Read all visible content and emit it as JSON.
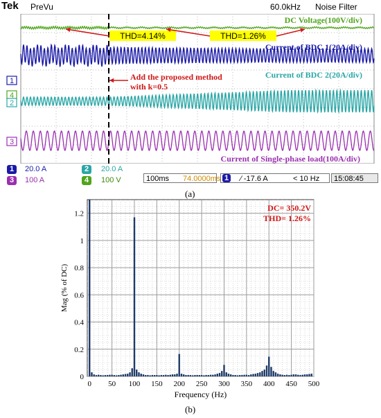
{
  "scope": {
    "brand": "Tek",
    "mode": "PreVu",
    "sample_rate": "60.0kHz",
    "filter": "Noise Filter",
    "timebase": "100ms/div",
    "ch_markers": [
      "1",
      "4",
      "2",
      "3"
    ],
    "annotations": {
      "thd_before": "THD=4.14%",
      "thd_after": "THD=1.26%",
      "dc_voltage": "DC Voltage(100V/div)",
      "bdc1": "Current of BDC 1(20A/div)",
      "bdc2": "Current of BDC 2(20A/div)",
      "method_line1": "Add the proposed method",
      "method_line2": "with k=0.5",
      "load": "Current of Single-phase load(100A/div)"
    },
    "status": {
      "ch1_num": "1",
      "ch1_val": "20.0 A",
      "ch2_num": "2",
      "ch2_val": "20.0 A",
      "ch3_num": "3",
      "ch3_val": "100 A",
      "ch4_num": "4",
      "ch4_val": "100 V",
      "time_window": "100ms",
      "position": "74.0000ms",
      "trig_ch": "1",
      "trig_level": "∕ -17.6 A",
      "trig_freq": "< 10 Hz",
      "clock": "15:08:45"
    },
    "colors": {
      "ch1": "#1a1aa8",
      "ch2": "#2aa6a6",
      "ch3": "#9a2fb0",
      "ch4": "#4fa51c",
      "highlight": "#ffff00",
      "annotation_red": "#d01818",
      "grid": "#b8b8b8"
    }
  },
  "caption_a": "(a)",
  "caption_b": "(b)",
  "chart_data": {
    "type": "bar",
    "xlabel": "Frequency (Hz)",
    "ylabel": "Mag (% of DC)",
    "xlim": [
      -5,
      500
    ],
    "ylim": [
      0,
      1.3
    ],
    "xticks": [
      "0",
      "50",
      "100",
      "150",
      "200",
      "250",
      "300",
      "350",
      "400",
      "450",
      "500"
    ],
    "yticks": [
      "0",
      "0.2",
      "0.4",
      "0.6",
      "0.8",
      "1",
      "1.2"
    ],
    "annotations": [
      "DC= 350.2V",
      "THD= 1.26%"
    ],
    "grid": true,
    "x": [
      0,
      5,
      10,
      15,
      20,
      25,
      30,
      35,
      40,
      45,
      50,
      55,
      60,
      65,
      70,
      75,
      80,
      85,
      90,
      95,
      100,
      105,
      110,
      115,
      120,
      125,
      130,
      135,
      140,
      145,
      150,
      155,
      160,
      165,
      170,
      175,
      180,
      185,
      190,
      195,
      200,
      205,
      210,
      215,
      220,
      225,
      230,
      235,
      240,
      245,
      250,
      255,
      260,
      265,
      270,
      275,
      280,
      285,
      290,
      295,
      300,
      305,
      310,
      315,
      320,
      325,
      330,
      335,
      340,
      345,
      350,
      355,
      360,
      365,
      370,
      375,
      380,
      385,
      390,
      395,
      400,
      405,
      410,
      415,
      420,
      425,
      430,
      435,
      440,
      445,
      450,
      455,
      460,
      465,
      470,
      475,
      480,
      485,
      490,
      495
    ],
    "values": [
      1.3,
      0.03,
      0.015,
      0.01,
      0.012,
      0.01,
      0.008,
      0.01,
      0.01,
      0.012,
      0.012,
      0.01,
      0.008,
      0.01,
      0.012,
      0.015,
      0.018,
      0.02,
      0.03,
      0.06,
      1.17,
      0.05,
      0.03,
      0.02,
      0.015,
      0.01,
      0.01,
      0.008,
      0.01,
      0.01,
      0.01,
      0.008,
      0.01,
      0.01,
      0.012,
      0.01,
      0.012,
      0.015,
      0.015,
      0.02,
      0.165,
      0.02,
      0.015,
      0.01,
      0.01,
      0.01,
      0.008,
      0.01,
      0.01,
      0.01,
      0.01,
      0.008,
      0.01,
      0.01,
      0.012,
      0.012,
      0.015,
      0.02,
      0.025,
      0.04,
      0.085,
      0.03,
      0.02,
      0.015,
      0.01,
      0.01,
      0.008,
      0.01,
      0.01,
      0.012,
      0.012,
      0.01,
      0.015,
      0.018,
      0.02,
      0.025,
      0.03,
      0.04,
      0.05,
      0.08,
      0.145,
      0.07,
      0.04,
      0.03,
      0.02,
      0.015,
      0.012,
      0.01,
      0.012,
      0.01,
      0.012,
      0.015,
      0.015,
      0.012,
      0.01,
      0.012,
      0.015,
      0.015,
      0.018,
      0.02
    ]
  }
}
